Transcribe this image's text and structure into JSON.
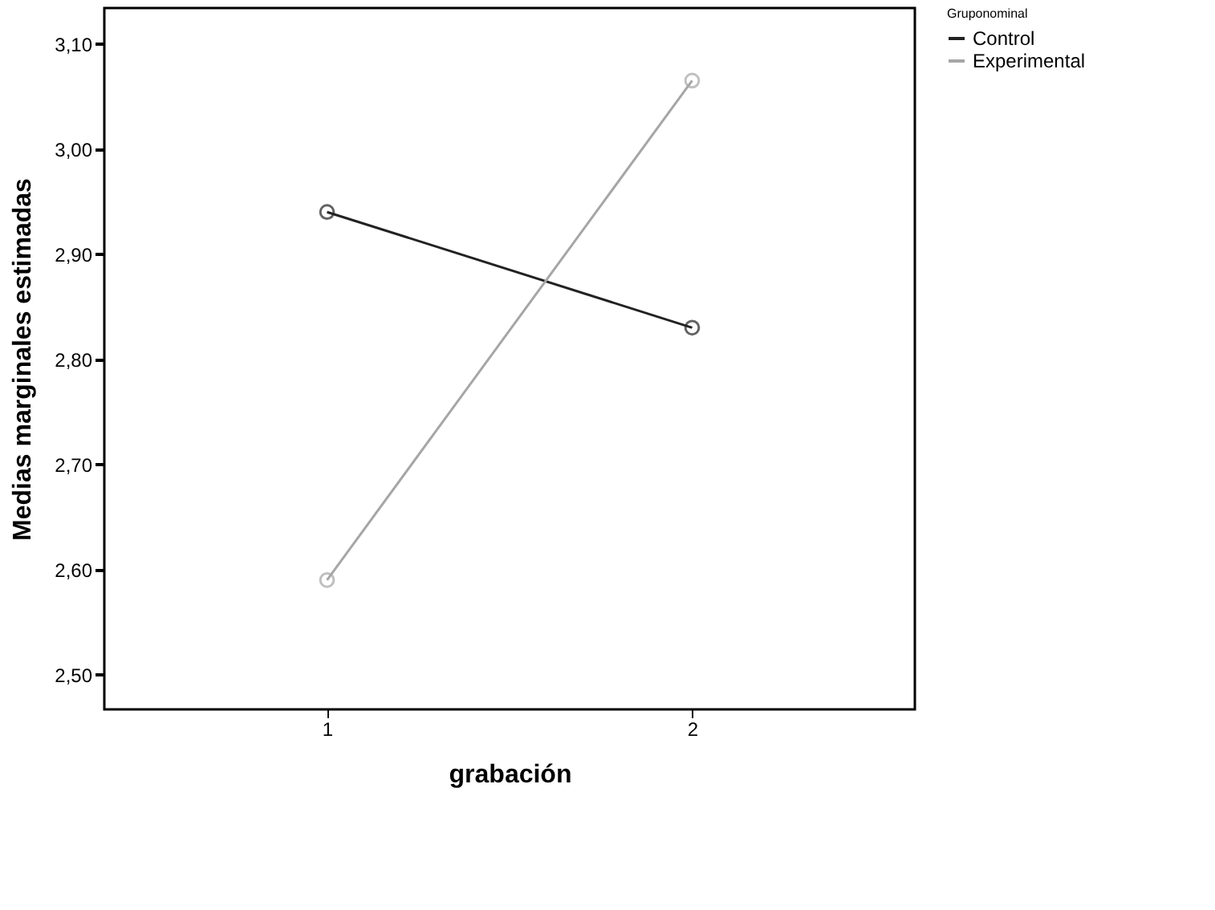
{
  "chart_data": {
    "type": "line",
    "xlabel": "grabación",
    "ylabel": "Medias marginales estimadas",
    "legend_title": "Gruponominal",
    "categories": [
      "1",
      "2"
    ],
    "series": [
      {
        "name": "Control",
        "color": "#222222",
        "values": [
          2.94,
          2.83
        ]
      },
      {
        "name": "Experimental",
        "color": "#a6a6a6",
        "values": [
          2.59,
          3.065
        ]
      }
    ],
    "ylim": [
      2.467,
      3.134
    ],
    "yticks": [
      {
        "value": 2.5,
        "label": "2,50"
      },
      {
        "value": 2.6,
        "label": "2,60"
      },
      {
        "value": 2.7,
        "label": "2,70"
      },
      {
        "value": 2.8,
        "label": "2,80"
      },
      {
        "value": 2.9,
        "label": "2,90"
      },
      {
        "value": 3.0,
        "label": "3,00"
      },
      {
        "value": 3.1,
        "label": "3,10"
      }
    ],
    "grid": false,
    "legend": "top right",
    "marker": "circle",
    "line_style": "solid"
  }
}
